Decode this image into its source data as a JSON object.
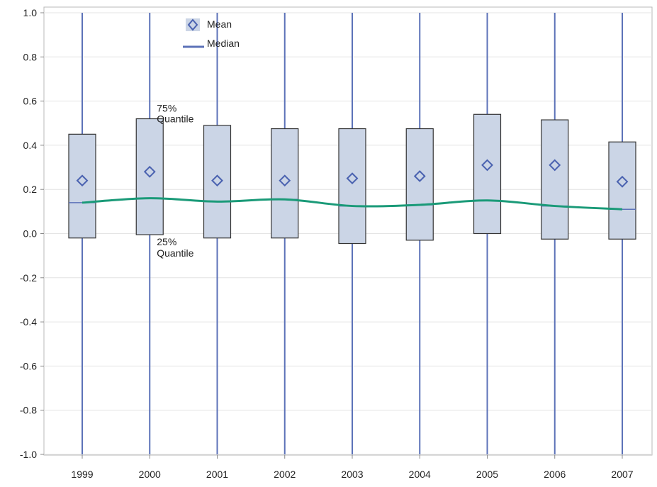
{
  "chart_data": {
    "type": "boxplot",
    "categories": [
      "1999",
      "2000",
      "2001",
      "2002",
      "2003",
      "2004",
      "2005",
      "2006",
      "2007"
    ],
    "boxes": [
      {
        "q1": -0.02,
        "q3": 0.45,
        "median": 0.14,
        "mean": 0.24,
        "whisker_low": -1.0,
        "whisker_high": 1.0
      },
      {
        "q1": -0.005,
        "q3": 0.52,
        "median": 0.16,
        "mean": 0.28,
        "whisker_low": -1.0,
        "whisker_high": 1.0
      },
      {
        "q1": -0.02,
        "q3": 0.49,
        "median": 0.145,
        "mean": 0.24,
        "whisker_low": -1.0,
        "whisker_high": 1.0
      },
      {
        "q1": -0.02,
        "q3": 0.475,
        "median": 0.155,
        "mean": 0.24,
        "whisker_low": -1.0,
        "whisker_high": 1.0
      },
      {
        "q1": -0.045,
        "q3": 0.475,
        "median": 0.125,
        "mean": 0.25,
        "whisker_low": -1.0,
        "whisker_high": 1.0
      },
      {
        "q1": -0.03,
        "q3": 0.475,
        "median": 0.13,
        "mean": 0.26,
        "whisker_low": -1.0,
        "whisker_high": 1.0
      },
      {
        "q1": 0.0,
        "q3": 0.54,
        "median": 0.15,
        "mean": 0.31,
        "whisker_low": -1.0,
        "whisker_high": 1.0
      },
      {
        "q1": -0.025,
        "q3": 0.515,
        "median": 0.125,
        "mean": 0.31,
        "whisker_low": -1.0,
        "whisker_high": 1.0
      },
      {
        "q1": -0.025,
        "q3": 0.415,
        "median": 0.11,
        "mean": 0.235,
        "whisker_low": -1.0,
        "whisker_high": 1.0
      }
    ],
    "y_ticks": [
      "1.0",
      "0.8",
      "0.6",
      "0.4",
      "0.2",
      "0.0",
      "-0.2",
      "-0.4",
      "-0.6",
      "-0.8",
      "-1.0"
    ],
    "y_tick_values": [
      1.0,
      0.8,
      0.6,
      0.4,
      0.2,
      0.0,
      -0.2,
      -0.4,
      -0.6,
      -0.8,
      -1.0
    ],
    "ylim": [
      -1.0,
      1.0
    ],
    "grid": true,
    "legend": {
      "placement": "top-left",
      "entries": [
        {
          "label": "Mean",
          "marker": "diamond"
        },
        {
          "label": "Median",
          "marker": "line"
        }
      ]
    },
    "annotations": {
      "q3_label_line1": "75%",
      "q3_label_line2": "Quantile",
      "q1_label_line1": "25%",
      "q1_label_line2": "Quantile",
      "category_index": 1
    },
    "colors": {
      "box_fill": "#cbd5e6",
      "box_stroke": "#333333",
      "whisker": "#5c72b8",
      "mean_marker": "#4a62b0",
      "median_line": "#1a9a78",
      "grid": "#e4e4e4",
      "axis": "#888888"
    }
  }
}
